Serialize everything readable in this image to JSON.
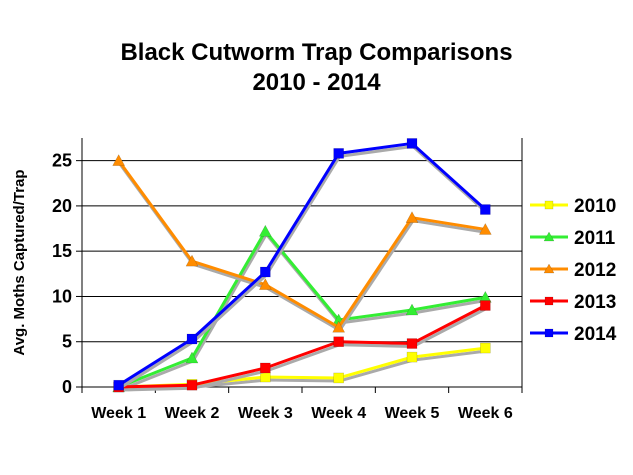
{
  "chart_data": {
    "type": "line",
    "title": "Black Cutworm Trap Comparisons",
    "subtitle": "2010 - 2014",
    "ylabel": "Avg. Moths Captured/Trap",
    "xlabel": "",
    "categories": [
      "Week 1",
      "Week 2",
      "Week 3",
      "Week 4",
      "Week 5",
      "Week 6"
    ],
    "ylim": [
      0,
      27.5
    ],
    "yticks": [
      0,
      5,
      10,
      15,
      20,
      25
    ],
    "grid": "horizontal",
    "legend_position": "right",
    "series": [
      {
        "name": "2010",
        "color": "#ffff00",
        "marker": "square",
        "values": [
          0,
          0.3,
          1.1,
          1.0,
          3.3,
          4.3
        ]
      },
      {
        "name": "2011",
        "color": "#33ee33",
        "marker": "triangle",
        "values": [
          0,
          3.2,
          17.2,
          7.4,
          8.5,
          9.9
        ]
      },
      {
        "name": "2012",
        "color": "#ff8c00",
        "marker": "triangle",
        "values": [
          25.0,
          13.9,
          11.3,
          6.6,
          18.7,
          17.4
        ]
      },
      {
        "name": "2013",
        "color": "#ff0000",
        "marker": "square",
        "values": [
          0,
          0.2,
          2.1,
          5.0,
          4.8,
          9.0
        ]
      },
      {
        "name": "2014",
        "color": "#0000ff",
        "marker": "square",
        "values": [
          0.2,
          5.3,
          12.7,
          25.8,
          26.9,
          19.6
        ]
      }
    ]
  }
}
